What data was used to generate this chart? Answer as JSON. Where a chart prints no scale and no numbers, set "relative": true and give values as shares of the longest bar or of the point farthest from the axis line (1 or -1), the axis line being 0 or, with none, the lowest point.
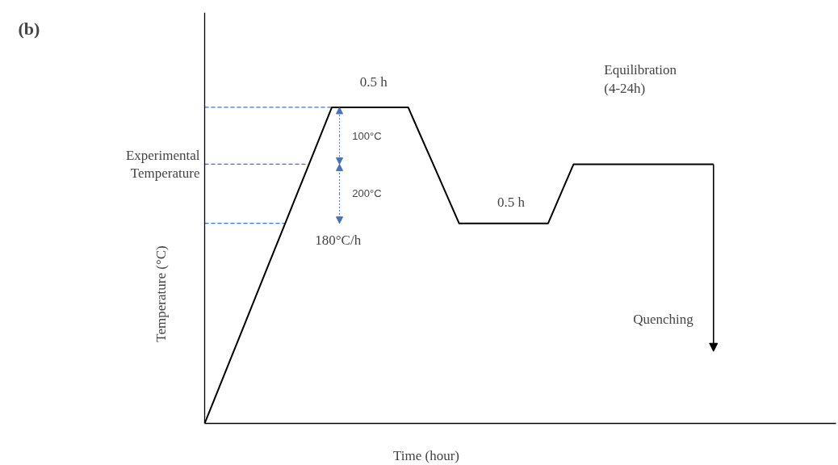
{
  "chart_data": {
    "type": "line",
    "relative": true,
    "title": "(b)",
    "xlabel": "Time (hour)",
    "ylabel": "Temperature (°C)",
    "marker": "none",
    "line_style": "solid",
    "categories": [
      null,
      null,
      null,
      null,
      null,
      null,
      null,
      null,
      null,
      null,
      null,
      null,
      null,
      null,
      null,
      null,
      null,
      null,
      null,
      null,
      null,
      null,
      null,
      null,
      null,
      null,
      null,
      null,
      null,
      null,
      null,
      null,
      null,
      null,
      null,
      null,
      null,
      null,
      null,
      null,
      null
    ],
    "series": [
      {
        "color": "#000000",
        "values": [
          0,
          0.1,
          0.2,
          0.3,
          0.4,
          0.5,
          0.6,
          0.7,
          0.8,
          0.9,
          1,
          1,
          1,
          1,
          1,
          1,
          1,
          0.908,
          0.817,
          0.725,
          0.633,
          0.633,
          0.633,
          0.633,
          0.633,
          0.633,
          0.633,
          0.633,
          0.727,
          0.82,
          0.82,
          0.82,
          0.82,
          0.82,
          0.82,
          0.82,
          0.82,
          0.82,
          0.82,
          0.82,
          0.82
        ]
      }
    ],
    "ref_lines": [
      {
        "axis": "y",
        "value": 1,
        "label": null,
        "color": "#4472c4",
        "line_style": "dashed"
      },
      {
        "axis": "y",
        "value": 0.82,
        "label": "Experimental\nTemperature",
        "color": "#4472c4",
        "line_style": "dashed"
      },
      {
        "axis": "y",
        "value": 0.633,
        "label": null,
        "color": "#4472c4",
        "line_style": "dashed"
      }
    ],
    "annotations": [
      "0.5 h",
      "100°C",
      "200°C",
      "0.5 h",
      "180°C/h",
      "Equilibration\n(4-24h)",
      "Quenching"
    ]
  }
}
